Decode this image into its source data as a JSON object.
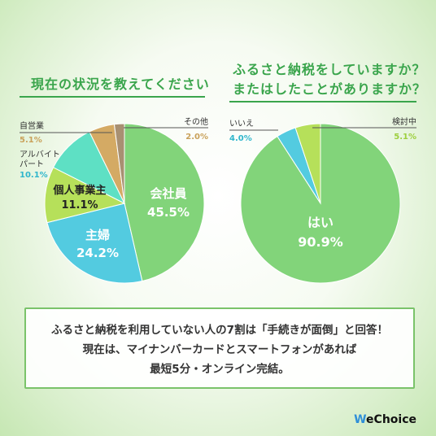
{
  "titles": {
    "left": "現在の状況を教えてください",
    "right_line1": "ふるさと納税をしていますか？",
    "right_line2": "またはしたことがありますか？"
  },
  "chart_data": [
    {
      "type": "pie",
      "title": "現在の状況を教えてください",
      "slices": [
        {
          "label": "会社員",
          "value": 45.5,
          "display": "45.5%",
          "color": "#82d47a"
        },
        {
          "label": "主婦",
          "value": 24.2,
          "display": "24.2%",
          "color": "#53cbe0"
        },
        {
          "label": "個人事業主",
          "value": 11.1,
          "display": "11.1%",
          "color": "#b6e05a"
        },
        {
          "label": "アルバイトパート",
          "value": 10.1,
          "display": "10.1%",
          "color": "#5ee0c4"
        },
        {
          "label": "自営業",
          "value": 5.1,
          "display": "5.1%",
          "color": "#d4aa64"
        },
        {
          "label": "その他",
          "value": 2.0,
          "display": "2.0%",
          "color": "#a89072"
        }
      ]
    },
    {
      "type": "pie",
      "title": "ふるさと納税をしていますか？またはしたことがありますか？",
      "slices": [
        {
          "label": "はい",
          "value": 90.9,
          "display": "90.9%",
          "color": "#82d47a"
        },
        {
          "label": "いいえ",
          "value": 4.0,
          "display": "4.0%",
          "color": "#53cbe0"
        },
        {
          "label": "検討中",
          "value": 5.1,
          "display": "5.1%",
          "color": "#b6e05a"
        }
      ]
    }
  ],
  "labels": {
    "employee_name": "会社員",
    "employee_pct": "45.5%",
    "housewife_name": "主婦",
    "housewife_pct": "24.2%",
    "self_employed_name": "個人事業主",
    "self_employed_pct": "11.1%",
    "parttime_name1": "アルバイト",
    "parttime_name2": "パート",
    "parttime_pct": "10.1%",
    "jieigyo_name": "自営業",
    "jieigyo_pct": "5.1%",
    "other_name": "その他",
    "other_pct": "2.0%",
    "yes_name": "はい",
    "yes_pct": "90.9%",
    "no_name": "いいえ",
    "no_pct": "4.0%",
    "considering_name": "検討中",
    "considering_pct": "5.1%"
  },
  "note": {
    "line1": "ふるさと納税を利用していない人の7割は「手続きが面倒」と回答！",
    "line2": "現在は、マイナンバーカードとスマートフォンがあれば",
    "line3": "最短5分・オンライン完結。"
  },
  "logo": {
    "first": "W",
    "rest": "eChoice"
  },
  "colors": {
    "accent": "#3aa54c",
    "label_brown": "#c9a15a",
    "label_teal": "#2fb6cc",
    "label_lime": "#9dcf3d"
  }
}
